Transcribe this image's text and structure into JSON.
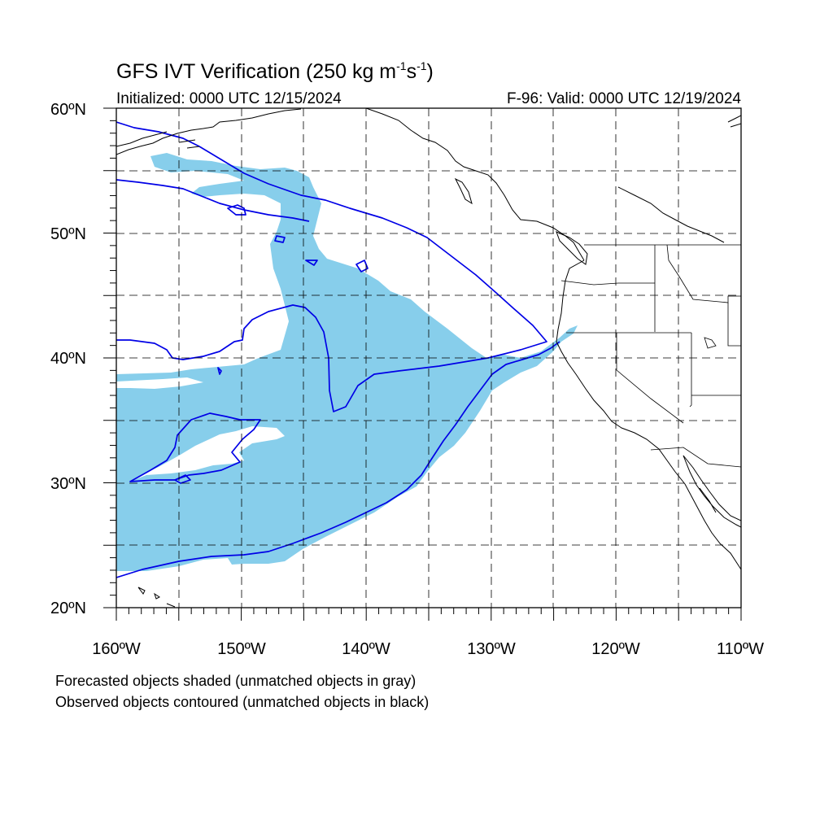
{
  "title": {
    "main": "GFS IVT Verification (250 kg m",
    "exp1": "-1",
    "mid": "s",
    "exp2": "-1",
    "end": ")"
  },
  "subtitle_left": "Initialized: 0000 UTC 12/15/2024",
  "subtitle_right": "F-96: Valid: 0000 UTC 12/19/2024",
  "lat_labels": [
    "60ºN",
    "50ºN",
    "40ºN",
    "30ºN",
    "20ºN"
  ],
  "lon_labels": [
    "160ºW",
    "150ºW",
    "140ºW",
    "130ºW",
    "120ºW",
    "110ºW"
  ],
  "notes": [
    "Forecasted objects shaded (unmatched objects in gray)",
    "Observed objects contoured (unmatched objects in black)"
  ],
  "colors": {
    "forecast_fill": "#87ceeb",
    "observed_contour": "#0000e6",
    "coastline": "#000000",
    "grid": "#000000"
  },
  "extent": {
    "lon_min": -160,
    "lon_max": -110,
    "lat_min": 20,
    "lat_max": 60
  }
}
